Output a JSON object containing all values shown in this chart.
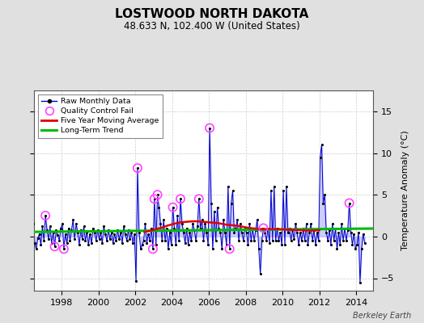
{
  "title": "LOSTWOOD NORTH DAKOTA",
  "subtitle": "48.633 N, 102.400 W (United States)",
  "ylabel": "Temperature Anomaly (°C)",
  "credit": "Berkeley Earth",
  "xlim": [
    1996.5,
    2014.92
  ],
  "ylim": [
    -6.5,
    17.5
  ],
  "yticks": [
    -5,
    0,
    5,
    10,
    15
  ],
  "xticks": [
    1998,
    2000,
    2002,
    2004,
    2006,
    2008,
    2010,
    2012,
    2014
  ],
  "bg_color": "#e0e0e0",
  "plot_bg_color": "#ffffff",
  "raw_data": [
    [
      1996.042,
      1.2
    ],
    [
      1996.125,
      0.5
    ],
    [
      1996.208,
      -0.3
    ],
    [
      1996.292,
      0.8
    ],
    [
      1996.375,
      -0.5
    ],
    [
      1996.458,
      1.5
    ],
    [
      1996.542,
      -0.8
    ],
    [
      1996.625,
      -1.5
    ],
    [
      1996.708,
      -0.2
    ],
    [
      1996.792,
      0.3
    ],
    [
      1996.875,
      -1.0
    ],
    [
      1996.958,
      1.2
    ],
    [
      1997.042,
      -0.5
    ],
    [
      1997.125,
      2.5
    ],
    [
      1997.208,
      0.8
    ],
    [
      1997.292,
      -0.3
    ],
    [
      1997.375,
      1.2
    ],
    [
      1997.458,
      -0.8
    ],
    [
      1997.542,
      0.5
    ],
    [
      1997.625,
      -1.2
    ],
    [
      1997.708,
      0.8
    ],
    [
      1997.792,
      0.2
    ],
    [
      1997.875,
      -0.5
    ],
    [
      1997.958,
      1.0
    ],
    [
      1998.042,
      1.5
    ],
    [
      1998.125,
      -1.5
    ],
    [
      1998.208,
      0.3
    ],
    [
      1998.292,
      -0.8
    ],
    [
      1998.375,
      1.0
    ],
    [
      1998.458,
      -0.5
    ],
    [
      1998.542,
      0.8
    ],
    [
      1998.625,
      2.0
    ],
    [
      1998.708,
      -0.3
    ],
    [
      1998.792,
      1.5
    ],
    [
      1998.875,
      0.5
    ],
    [
      1998.958,
      -1.0
    ],
    [
      1999.042,
      0.8
    ],
    [
      1999.125,
      -0.3
    ],
    [
      1999.208,
      1.2
    ],
    [
      1999.292,
      -0.5
    ],
    [
      1999.375,
      0.5
    ],
    [
      1999.458,
      -1.0
    ],
    [
      1999.542,
      0.3
    ],
    [
      1999.625,
      -0.8
    ],
    [
      1999.708,
      1.0
    ],
    [
      1999.792,
      0.5
    ],
    [
      1999.875,
      -0.5
    ],
    [
      1999.958,
      0.8
    ],
    [
      2000.042,
      -0.3
    ],
    [
      2000.125,
      0.5
    ],
    [
      2000.208,
      -0.8
    ],
    [
      2000.292,
      1.2
    ],
    [
      2000.375,
      0.3
    ],
    [
      2000.458,
      -0.5
    ],
    [
      2000.542,
      0.8
    ],
    [
      2000.625,
      -0.3
    ],
    [
      2000.708,
      0.5
    ],
    [
      2000.792,
      -0.8
    ],
    [
      2000.875,
      0.3
    ],
    [
      2000.958,
      -0.5
    ],
    [
      2001.042,
      0.8
    ],
    [
      2001.125,
      -0.3
    ],
    [
      2001.208,
      0.5
    ],
    [
      2001.292,
      -0.8
    ],
    [
      2001.375,
      1.2
    ],
    [
      2001.458,
      0.3
    ],
    [
      2001.542,
      -0.5
    ],
    [
      2001.625,
      0.8
    ],
    [
      2001.708,
      -0.3
    ],
    [
      2001.792,
      0.5
    ],
    [
      2001.875,
      -0.8
    ],
    [
      2001.958,
      0.3
    ],
    [
      2002.042,
      -5.3
    ],
    [
      2002.125,
      8.2
    ],
    [
      2002.208,
      0.5
    ],
    [
      2002.292,
      -1.5
    ],
    [
      2002.375,
      -1.0
    ],
    [
      2002.458,
      -0.5
    ],
    [
      2002.542,
      1.5
    ],
    [
      2002.625,
      -0.8
    ],
    [
      2002.708,
      0.3
    ],
    [
      2002.792,
      -0.5
    ],
    [
      2002.875,
      1.0
    ],
    [
      2002.958,
      -1.5
    ],
    [
      2003.042,
      4.5
    ],
    [
      2003.125,
      -1.0
    ],
    [
      2003.208,
      5.0
    ],
    [
      2003.292,
      3.5
    ],
    [
      2003.375,
      1.5
    ],
    [
      2003.458,
      -0.5
    ],
    [
      2003.542,
      2.0
    ],
    [
      2003.625,
      -0.5
    ],
    [
      2003.708,
      1.0
    ],
    [
      2003.792,
      -1.5
    ],
    [
      2003.875,
      0.5
    ],
    [
      2003.958,
      -1.0
    ],
    [
      2004.042,
      3.5
    ],
    [
      2004.125,
      1.0
    ],
    [
      2004.208,
      -1.0
    ],
    [
      2004.292,
      2.5
    ],
    [
      2004.375,
      -0.5
    ],
    [
      2004.458,
      4.5
    ],
    [
      2004.542,
      1.5
    ],
    [
      2004.625,
      0.5
    ],
    [
      2004.708,
      -0.8
    ],
    [
      2004.792,
      1.0
    ],
    [
      2004.875,
      -1.0
    ],
    [
      2004.958,
      0.5
    ],
    [
      2005.042,
      -0.5
    ],
    [
      2005.125,
      1.5
    ],
    [
      2005.208,
      0.8
    ],
    [
      2005.292,
      -0.5
    ],
    [
      2005.375,
      1.2
    ],
    [
      2005.458,
      4.5
    ],
    [
      2005.542,
      1.0
    ],
    [
      2005.625,
      2.0
    ],
    [
      2005.708,
      -0.5
    ],
    [
      2005.792,
      1.5
    ],
    [
      2005.875,
      0.5
    ],
    [
      2005.958,
      -1.0
    ],
    [
      2006.042,
      13.0
    ],
    [
      2006.125,
      4.0
    ],
    [
      2006.208,
      -1.5
    ],
    [
      2006.292,
      3.0
    ],
    [
      2006.375,
      -0.5
    ],
    [
      2006.458,
      3.5
    ],
    [
      2006.542,
      1.0
    ],
    [
      2006.625,
      0.5
    ],
    [
      2006.708,
      -1.5
    ],
    [
      2006.792,
      2.0
    ],
    [
      2006.875,
      0.5
    ],
    [
      2006.958,
      -1.0
    ],
    [
      2007.042,
      6.0
    ],
    [
      2007.125,
      -1.5
    ],
    [
      2007.208,
      4.0
    ],
    [
      2007.292,
      5.5
    ],
    [
      2007.375,
      0.5
    ],
    [
      2007.458,
      1.0
    ],
    [
      2007.542,
      2.0
    ],
    [
      2007.625,
      -0.5
    ],
    [
      2007.708,
      1.5
    ],
    [
      2007.792,
      0.5
    ],
    [
      2007.875,
      -0.5
    ],
    [
      2007.958,
      1.0
    ],
    [
      2008.042,
      0.5
    ],
    [
      2008.125,
      -1.0
    ],
    [
      2008.208,
      1.5
    ],
    [
      2008.292,
      -0.5
    ],
    [
      2008.375,
      1.0
    ],
    [
      2008.458,
      -0.5
    ],
    [
      2008.542,
      0.8
    ],
    [
      2008.625,
      2.0
    ],
    [
      2008.708,
      -1.5
    ],
    [
      2008.792,
      -4.5
    ],
    [
      2008.875,
      -0.5
    ],
    [
      2008.958,
      1.0
    ],
    [
      2009.042,
      0.5
    ],
    [
      2009.125,
      -0.5
    ],
    [
      2009.208,
      1.0
    ],
    [
      2009.292,
      -0.8
    ],
    [
      2009.375,
      5.5
    ],
    [
      2009.458,
      -0.5
    ],
    [
      2009.542,
      6.0
    ],
    [
      2009.625,
      -0.5
    ],
    [
      2009.708,
      1.0
    ],
    [
      2009.792,
      -0.5
    ],
    [
      2009.875,
      0.5
    ],
    [
      2009.958,
      -1.0
    ],
    [
      2010.042,
      5.5
    ],
    [
      2010.125,
      -1.0
    ],
    [
      2010.208,
      6.0
    ],
    [
      2010.292,
      0.5
    ],
    [
      2010.375,
      1.0
    ],
    [
      2010.458,
      -0.5
    ],
    [
      2010.542,
      0.8
    ],
    [
      2010.625,
      -0.3
    ],
    [
      2010.708,
      1.5
    ],
    [
      2010.792,
      0.5
    ],
    [
      2010.875,
      -1.0
    ],
    [
      2010.958,
      0.5
    ],
    [
      2011.042,
      -0.5
    ],
    [
      2011.125,
      1.0
    ],
    [
      2011.208,
      -0.5
    ],
    [
      2011.292,
      1.5
    ],
    [
      2011.375,
      -1.0
    ],
    [
      2011.458,
      0.5
    ],
    [
      2011.542,
      1.5
    ],
    [
      2011.625,
      -0.5
    ],
    [
      2011.708,
      0.8
    ],
    [
      2011.792,
      -1.0
    ],
    [
      2011.875,
      0.5
    ],
    [
      2011.958,
      -0.5
    ],
    [
      2012.042,
      9.5
    ],
    [
      2012.125,
      11.0
    ],
    [
      2012.208,
      4.0
    ],
    [
      2012.292,
      5.0
    ],
    [
      2012.375,
      0.5
    ],
    [
      2012.458,
      -0.5
    ],
    [
      2012.542,
      0.8
    ],
    [
      2012.625,
      -1.0
    ],
    [
      2012.708,
      1.5
    ],
    [
      2012.792,
      -0.5
    ],
    [
      2012.875,
      1.0
    ],
    [
      2012.958,
      -1.5
    ],
    [
      2013.042,
      0.5
    ],
    [
      2013.125,
      -1.0
    ],
    [
      2013.208,
      1.5
    ],
    [
      2013.292,
      -0.5
    ],
    [
      2013.375,
      1.0
    ],
    [
      2013.458,
      -0.5
    ],
    [
      2013.542,
      0.8
    ],
    [
      2013.625,
      4.0
    ],
    [
      2013.708,
      0.5
    ],
    [
      2013.792,
      -1.0
    ],
    [
      2013.875,
      0.3
    ],
    [
      2013.958,
      -1.5
    ],
    [
      2014.042,
      -1.0
    ],
    [
      2014.125,
      0.5
    ],
    [
      2014.208,
      -5.5
    ],
    [
      2014.292,
      -1.5
    ],
    [
      2014.375,
      0.3
    ],
    [
      2014.458,
      -0.8
    ]
  ],
  "qc_fail_points": [
    [
      1997.125,
      2.5
    ],
    [
      1997.625,
      -1.2
    ],
    [
      1998.125,
      -1.5
    ],
    [
      2002.125,
      8.2
    ],
    [
      2002.958,
      -1.5
    ],
    [
      2003.042,
      4.5
    ],
    [
      2003.208,
      5.0
    ],
    [
      2004.042,
      3.5
    ],
    [
      2004.458,
      4.5
    ],
    [
      2005.458,
      4.5
    ],
    [
      2006.042,
      13.0
    ],
    [
      2007.125,
      -1.5
    ],
    [
      2008.958,
      1.0
    ],
    [
      2013.625,
      4.0
    ]
  ],
  "moving_avg": [
    [
      2002.5,
      0.55
    ],
    [
      2002.75,
      0.65
    ],
    [
      2003.0,
      0.8
    ],
    [
      2003.25,
      0.95
    ],
    [
      2003.5,
      1.1
    ],
    [
      2003.75,
      1.3
    ],
    [
      2004.0,
      1.45
    ],
    [
      2004.25,
      1.6
    ],
    [
      2004.5,
      1.7
    ],
    [
      2004.75,
      1.75
    ],
    [
      2005.0,
      1.8
    ],
    [
      2005.25,
      1.82
    ],
    [
      2005.5,
      1.8
    ],
    [
      2005.75,
      1.75
    ],
    [
      2006.0,
      1.7
    ],
    [
      2006.25,
      1.65
    ],
    [
      2006.5,
      1.6
    ],
    [
      2006.75,
      1.5
    ],
    [
      2007.0,
      1.4
    ],
    [
      2007.25,
      1.35
    ],
    [
      2007.5,
      1.3
    ],
    [
      2007.75,
      1.2
    ],
    [
      2008.0,
      1.1
    ],
    [
      2008.25,
      1.0
    ],
    [
      2008.5,
      0.95
    ],
    [
      2008.75,
      0.9
    ],
    [
      2009.0,
      0.88
    ],
    [
      2009.25,
      0.87
    ],
    [
      2009.5,
      0.88
    ],
    [
      2009.75,
      0.87
    ],
    [
      2010.0,
      0.85
    ],
    [
      2010.25,
      0.82
    ],
    [
      2010.5,
      0.8
    ],
    [
      2010.75,
      0.78
    ],
    [
      2011.0,
      0.75
    ],
    [
      2011.25,
      0.72
    ],
    [
      2011.5,
      0.7
    ],
    [
      2011.75,
      0.72
    ],
    [
      2012.0,
      0.75
    ]
  ],
  "trend_line": [
    [
      1996.5,
      0.55
    ],
    [
      2014.92,
      0.95
    ]
  ],
  "line_color": "#0000cc",
  "fill_color": "#aaaaff",
  "moving_avg_color": "#dd0000",
  "trend_color": "#00bb00",
  "qc_color": "#ff44ff",
  "dot_color": "#000000",
  "grid_color": "#cccccc",
  "title_fontsize": 11,
  "subtitle_fontsize": 8.5,
  "tick_fontsize": 8,
  "ylabel_fontsize": 8
}
